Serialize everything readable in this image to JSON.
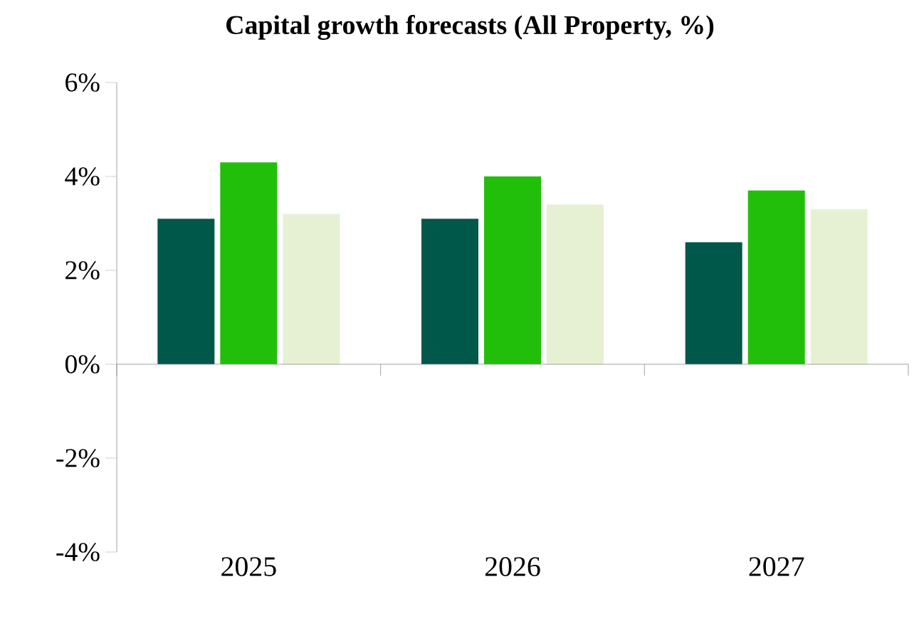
{
  "chart_data": {
    "type": "bar",
    "title": "Capital growth forecasts (All Property, %)",
    "categories": [
      "2025",
      "2026",
      "2027"
    ],
    "series": [
      {
        "color": "#00584a",
        "values": [
          3.1,
          3.1,
          2.6
        ]
      },
      {
        "color": "#22bf0a",
        "values": [
          4.3,
          4.0,
          3.7
        ]
      },
      {
        "color": "#e6f1d4",
        "values": [
          3.2,
          3.4,
          3.3
        ]
      }
    ],
    "ylim": [
      -4,
      6
    ],
    "yticks": [
      {
        "value": -4,
        "label": "-4%"
      },
      {
        "value": -2,
        "label": "-2%"
      },
      {
        "value": 0,
        "label": "0%"
      },
      {
        "value": 2,
        "label": "2%"
      },
      {
        "value": 4,
        "label": "4%"
      },
      {
        "value": 6,
        "label": "6%"
      }
    ]
  }
}
